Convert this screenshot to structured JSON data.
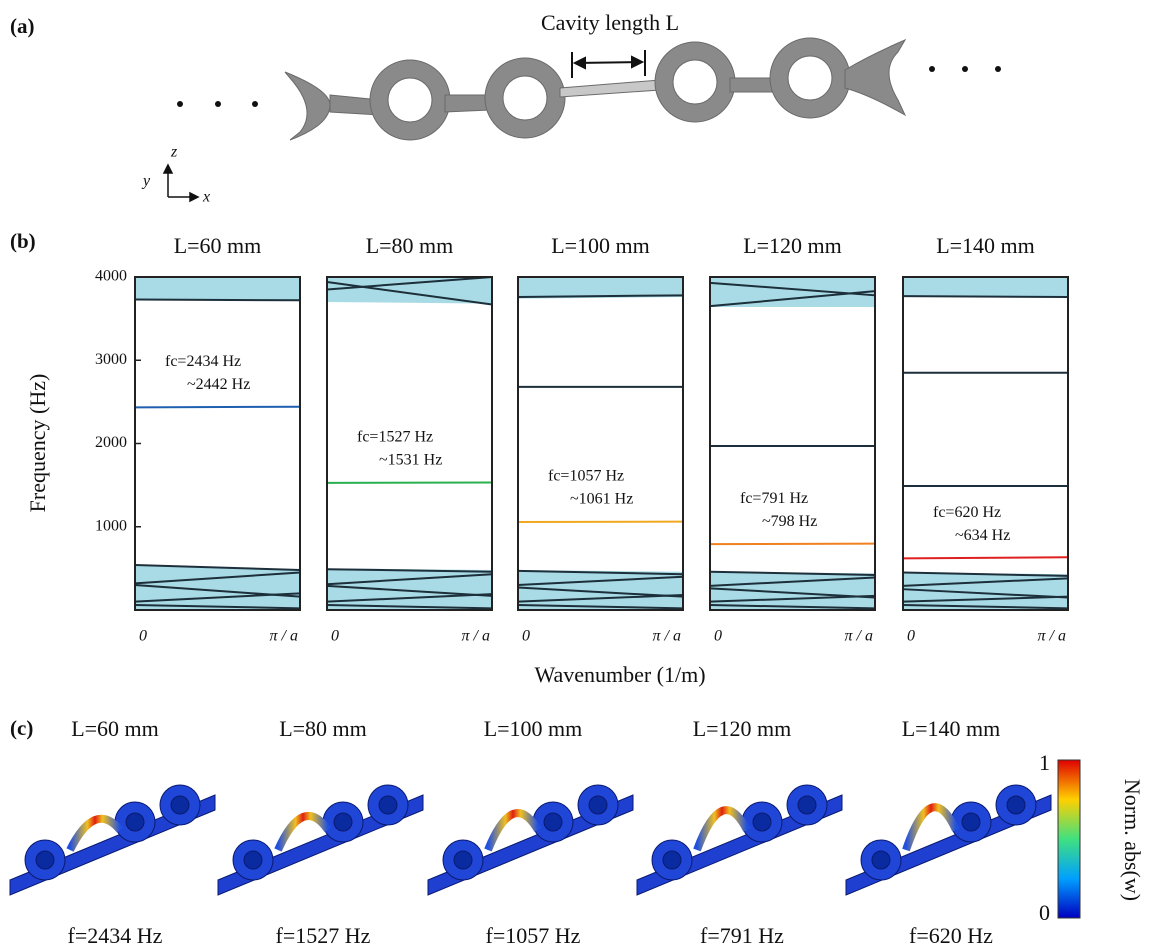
{
  "panel_labels": [
    "(a)",
    "(b)",
    "(c)"
  ],
  "panel_a": {
    "cavity_label": "Cavity length L",
    "axis_z": "z",
    "axis_y": "y",
    "axis_x": "x"
  },
  "panel_b": {
    "ylabel": "Frequency (Hz)",
    "xlabel": "Wavenumber (1/m)"
  },
  "chart_data": [
    {
      "type": "band",
      "title": "L=60 mm",
      "x": [
        0,
        1
      ],
      "xlim": [
        0,
        1
      ],
      "xticks": [
        {
          "value": 0,
          "label": "0"
        },
        {
          "value": 1,
          "label": "π / a"
        }
      ],
      "ylim": [
        0,
        4000
      ],
      "yticks": [
        1000,
        2000,
        3000,
        4000
      ],
      "passbands": [
        {
          "lower": [
            0,
            0
          ],
          "upper": [
            540,
            480
          ]
        },
        {
          "lower": [
            3730,
            3720
          ],
          "upper": [
            4000,
            4000
          ]
        }
      ],
      "series": [
        {
          "color": "#1c2f3a",
          "values": [
            540,
            480
          ]
        },
        {
          "color": "#1c2f3a",
          "values": [
            320,
            450
          ]
        },
        {
          "color": "#1c2f3a",
          "values": [
            300,
            160
          ]
        },
        {
          "color": "#1c2f3a",
          "values": [
            100,
            200
          ]
        },
        {
          "color": "#1c2f3a",
          "values": [
            60,
            20
          ]
        },
        {
          "color": "#1c2f3a",
          "values": [
            3730,
            3720
          ]
        },
        {
          "color": "#1f5fb0",
          "values": [
            2434,
            2442
          ]
        }
      ],
      "annotation": [
        "fc=2434 Hz",
        "~2442 Hz"
      ]
    },
    {
      "type": "band",
      "title": "L=80 mm",
      "x": [
        0,
        1
      ],
      "xlim": [
        0,
        1
      ],
      "xticks": [
        {
          "value": 0,
          "label": "0"
        },
        {
          "value": 1,
          "label": "π / a"
        }
      ],
      "ylim": [
        0,
        4000
      ],
      "passbands": [
        {
          "lower": [
            0,
            0
          ],
          "upper": [
            500,
            480
          ]
        },
        {
          "lower": [
            3700,
            3680
          ],
          "upper": [
            4000,
            4000
          ]
        }
      ],
      "series": [
        {
          "color": "#1c2f3a",
          "values": [
            490,
            460
          ]
        },
        {
          "color": "#1c2f3a",
          "values": [
            310,
            430
          ]
        },
        {
          "color": "#1c2f3a",
          "values": [
            290,
            170
          ]
        },
        {
          "color": "#1c2f3a",
          "values": [
            100,
            190
          ]
        },
        {
          "color": "#1c2f3a",
          "values": [
            60,
            20
          ]
        },
        {
          "color": "#1c2f3a",
          "values": [
            3940,
            3670
          ]
        },
        {
          "color": "#1c2f3a",
          "values": [
            3850,
            4000
          ]
        },
        {
          "color": "#2ab050",
          "values": [
            1527,
            1531
          ]
        }
      ],
      "annotation": [
        "fc=1527 Hz",
        "~1531 Hz"
      ]
    },
    {
      "type": "band",
      "title": "L=100 mm",
      "x": [
        0,
        1
      ],
      "xlim": [
        0,
        1
      ],
      "xticks": [
        {
          "value": 0,
          "label": "0"
        },
        {
          "value": 1,
          "label": "π / a"
        }
      ],
      "ylim": [
        0,
        4000
      ],
      "passbands": [
        {
          "lower": [
            0,
            0
          ],
          "upper": [
            480,
            460
          ]
        },
        {
          "lower": [
            3740,
            3760
          ],
          "upper": [
            4000,
            4000
          ]
        }
      ],
      "series": [
        {
          "color": "#1c2f3a",
          "values": [
            470,
            430
          ]
        },
        {
          "color": "#1c2f3a",
          "values": [
            300,
            400
          ]
        },
        {
          "color": "#1c2f3a",
          "values": [
            270,
            160
          ]
        },
        {
          "color": "#1c2f3a",
          "values": [
            100,
            180
          ]
        },
        {
          "color": "#1c2f3a",
          "values": [
            60,
            20
          ]
        },
        {
          "color": "#1c2f3a",
          "values": [
            3760,
            3780
          ]
        },
        {
          "color": "#1c2f3a",
          "values": [
            2680,
            2680
          ]
        },
        {
          "color": "#f0a820",
          "values": [
            1057,
            1061
          ]
        }
      ],
      "annotation": [
        "fc=1057 Hz",
        "~1061 Hz"
      ]
    },
    {
      "type": "band",
      "title": "L=120 mm",
      "x": [
        0,
        1
      ],
      "xlim": [
        0,
        1
      ],
      "xticks": [
        {
          "value": 0,
          "label": "0"
        },
        {
          "value": 1,
          "label": "π / a"
        }
      ],
      "ylim": [
        0,
        4000
      ],
      "passbands": [
        {
          "lower": [
            0,
            0
          ],
          "upper": [
            460,
            440
          ]
        },
        {
          "lower": [
            3640,
            3640
          ],
          "upper": [
            4000,
            4000
          ]
        }
      ],
      "series": [
        {
          "color": "#1c2f3a",
          "values": [
            460,
            420
          ]
        },
        {
          "color": "#1c2f3a",
          "values": [
            290,
            390
          ]
        },
        {
          "color": "#1c2f3a",
          "values": [
            260,
            150
          ]
        },
        {
          "color": "#1c2f3a",
          "values": [
            100,
            170
          ]
        },
        {
          "color": "#1c2f3a",
          "values": [
            60,
            20
          ]
        },
        {
          "color": "#1c2f3a",
          "values": [
            3930,
            3780
          ]
        },
        {
          "color": "#1c2f3a",
          "values": [
            3650,
            3830
          ]
        },
        {
          "color": "#1c2f3a",
          "values": [
            1970,
            1970
          ]
        },
        {
          "color": "#f08020",
          "values": [
            791,
            798
          ]
        }
      ],
      "annotation": [
        "fc=791 Hz",
        "~798 Hz"
      ]
    },
    {
      "type": "band",
      "title": "L=140 mm",
      "x": [
        0,
        1
      ],
      "xlim": [
        0,
        1
      ],
      "xticks": [
        {
          "value": 0,
          "label": "0"
        },
        {
          "value": 1,
          "label": "π / a"
        }
      ],
      "ylim": [
        0,
        4000
      ],
      "passbands": [
        {
          "lower": [
            0,
            0
          ],
          "upper": [
            450,
            430
          ]
        },
        {
          "lower": [
            3760,
            3760
          ],
          "upper": [
            4000,
            4000
          ]
        }
      ],
      "series": [
        {
          "color": "#1c2f3a",
          "values": [
            450,
            410
          ]
        },
        {
          "color": "#1c2f3a",
          "values": [
            290,
            380
          ]
        },
        {
          "color": "#1c2f3a",
          "values": [
            250,
            150
          ]
        },
        {
          "color": "#1c2f3a",
          "values": [
            100,
            160
          ]
        },
        {
          "color": "#1c2f3a",
          "values": [
            60,
            20
          ]
        },
        {
          "color": "#1c2f3a",
          "values": [
            3770,
            3760
          ]
        },
        {
          "color": "#1c2f3a",
          "values": [
            2850,
            2850
          ]
        },
        {
          "color": "#1c2f3a",
          "values": [
            1490,
            1490
          ]
        },
        {
          "color": "#e02020",
          "values": [
            620,
            634
          ]
        }
      ],
      "annotation": [
        "fc=620 Hz",
        "~634 Hz"
      ]
    }
  ],
  "panel_c": {
    "titles": [
      "L=60 mm",
      "L=80 mm",
      "L=100 mm",
      "L=120 mm",
      "L=140 mm"
    ],
    "captions": [
      "f=2434 Hz",
      "f=1527 Hz",
      "f=1057 Hz",
      "f=791 Hz",
      "f=620 Hz"
    ],
    "colorbar": {
      "label": "Norm. abs(w)",
      "ticks": [
        0,
        1
      ]
    }
  }
}
